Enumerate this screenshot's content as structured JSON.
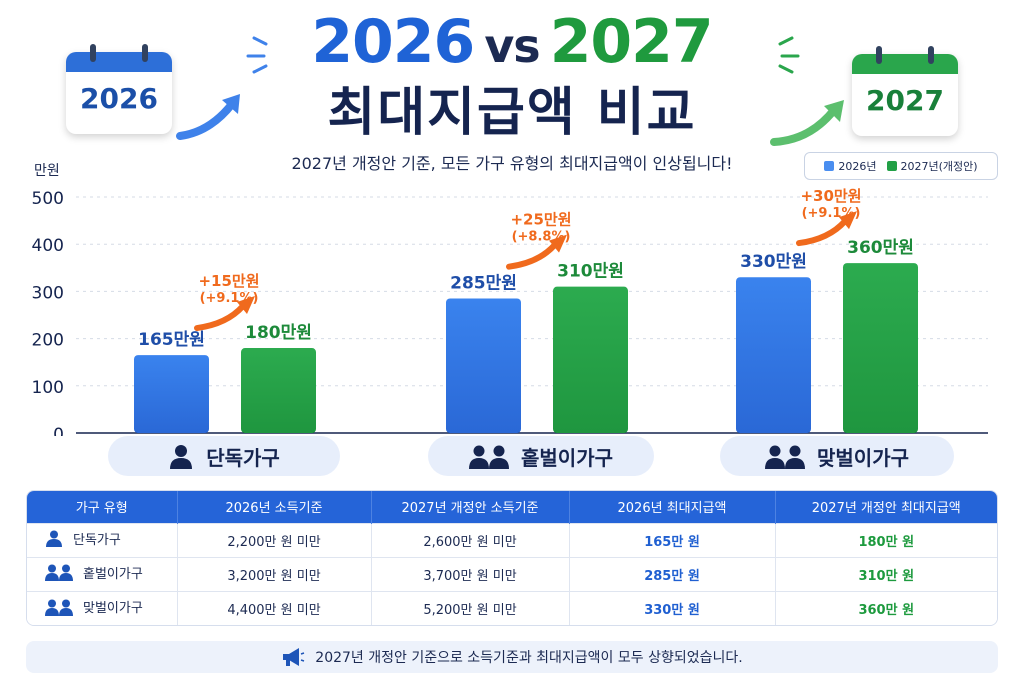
{
  "header": {
    "year_a": "2026",
    "vs": "vs",
    "year_b": "2027",
    "title_line2": "최대지급액 비교",
    "subtitle": "2027년 개정안 기준, 모든 가구 유형의 최대지급액이 인상됩니다!",
    "calendar_left": "2026",
    "calendar_right": "2027"
  },
  "colors": {
    "blue": "#2f74e0",
    "green": "#25a24a",
    "blue_label": "#1f4ea8",
    "green_label": "#1d8a3a",
    "orange": "#f06a1d"
  },
  "chart_data": {
    "type": "bar",
    "unit_label": "만원",
    "yticks": [
      "0",
      "100",
      "200",
      "300",
      "400",
      "500"
    ],
    "ylim": [
      0,
      500
    ],
    "grid": true,
    "legend_position": "top-right",
    "categories": [
      "단독가구",
      "홑벌이가구",
      "맞벌이가구"
    ],
    "category_icons": [
      "single-person-icon",
      "two-people-icon",
      "two-people-icon"
    ],
    "series": [
      {
        "name": "2026년",
        "values": [
          165,
          285,
          330
        ],
        "labels": [
          "165만원",
          "285만원",
          "330만원"
        ]
      },
      {
        "name": "2027년(개정안)",
        "values": [
          180,
          310,
          360
        ],
        "labels": [
          "180만원",
          "310만원",
          "360만원"
        ]
      }
    ],
    "increases": [
      {
        "amount": "+15만원",
        "percent": "(+9.1%)"
      },
      {
        "amount": "+25만원",
        "percent": "(+8.8%)"
      },
      {
        "amount": "+30만원",
        "percent": "(+9.1%)"
      }
    ]
  },
  "table": {
    "headers": [
      "가구 유형",
      "2026년 소득기준",
      "2027년 개정안 소득기준",
      "2026년 최대지급액",
      "2027년 개정안 최대지급액"
    ],
    "rows": [
      {
        "type": "단독가구",
        "icon": "single-person-icon",
        "income2026": "2,200만 원 미만",
        "income2027": "2,600만 원 미만",
        "max2026": "165만 원",
        "max2027": "180만 원"
      },
      {
        "type": "홑벌이가구",
        "icon": "two-people-icon",
        "income2026": "3,200만 원 미만",
        "income2027": "3,700만 원 미만",
        "max2026": "285만 원",
        "max2027": "310만 원"
      },
      {
        "type": "맞벌이가구",
        "icon": "two-people-icon",
        "income2026": "4,400만 원 미만",
        "income2027": "5,200만 원 미만",
        "max2026": "330만 원",
        "max2027": "360만 원"
      }
    ]
  },
  "footnote": {
    "icon": "megaphone-icon",
    "text": "2027년 개정안 기준으로 소득기준과 최대지급액이 모두 상향되었습니다."
  }
}
